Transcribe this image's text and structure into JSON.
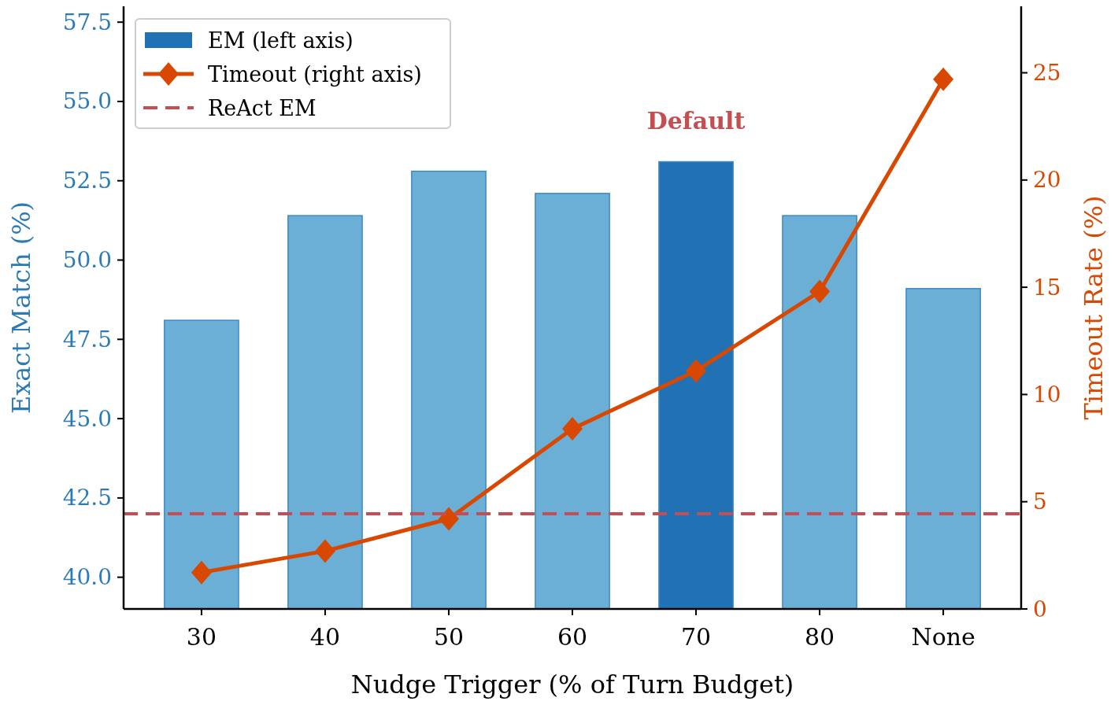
{
  "chart_data": {
    "type": "bar",
    "categories": [
      "30",
      "40",
      "50",
      "60",
      "70",
      "80",
      "None"
    ],
    "xlabel": "Nudge Trigger (% of Turn Budget)",
    "ylabel": "Exact Match (%)",
    "y2label": "Timeout Rate (%)",
    "series": [
      {
        "name": "EM (left axis)",
        "color": "#2171b5",
        "colors": [
          "#6baed6",
          "#6baed6",
          "#6baed6",
          "#6baed6",
          "#2171b5",
          "#6baed6",
          "#6baed6"
        ],
        "values": [
          48.1,
          51.4,
          52.8,
          52.1,
          53.1,
          51.4,
          49.1
        ]
      },
      {
        "name": "Timeout (right axis)",
        "type": "line",
        "axis": "y2",
        "color": "#d94801",
        "values": [
          1.7,
          2.7,
          4.2,
          8.4,
          11.1,
          14.8,
          24.7
        ]
      }
    ],
    "ref_lines": [
      {
        "axis": "y",
        "value": 42.0,
        "label": "ReAct EM",
        "color": "#c44e52",
        "line_style": "dashed"
      }
    ],
    "annotations": [
      {
        "text": "Default",
        "x": "70",
        "y": 53.1
      }
    ],
    "ylim": [
      39.0,
      58.0
    ],
    "yticks": [
      {
        "value": 40,
        "label": "40.0"
      },
      {
        "value": 42.5,
        "label": "42.5"
      },
      {
        "value": 45,
        "label": "45.0"
      },
      {
        "value": 47.5,
        "label": "47.5"
      },
      {
        "value": 50,
        "label": "50.0"
      },
      {
        "value": 52.5,
        "label": "52.5"
      },
      {
        "value": 55,
        "label": "55.0"
      },
      {
        "value": 57.5,
        "label": "57.5"
      }
    ],
    "y2lim": [
      0,
      28.1
    ],
    "y2ticks": [
      0,
      5,
      10,
      15,
      20,
      25
    ],
    "legend": "top left",
    "marker": "diamond",
    "grid": false
  }
}
